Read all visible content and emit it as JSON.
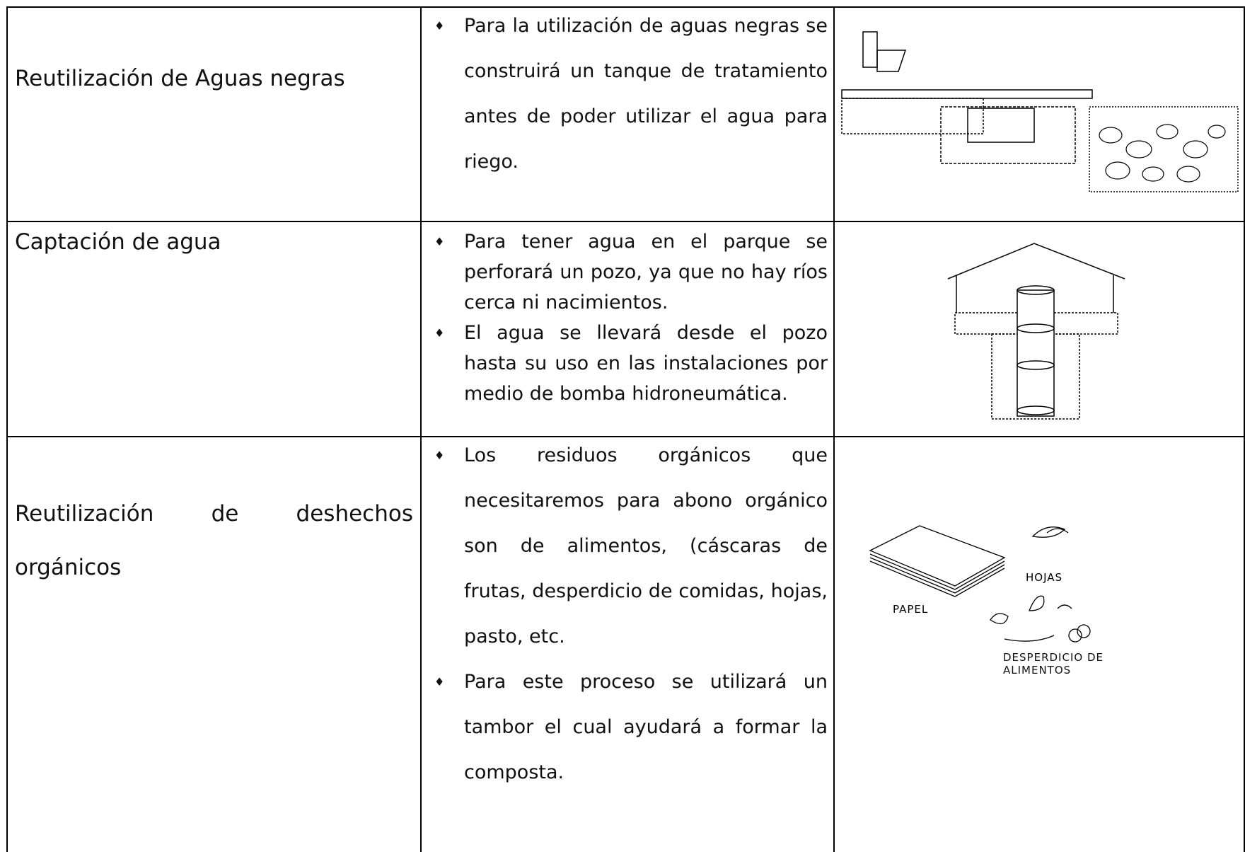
{
  "rows": [
    {
      "label": "Reutilización de Aguas negras",
      "bullets": [
        "Para la utilización de aguas negras se construirá un tanque de tratamiento antes de poder utilizar el agua para riego."
      ]
    },
    {
      "label": "Captación de agua",
      "bullets": [
        "Para tener agua en el parque se perforará un pozo, ya que no hay ríos cerca ni nacimientos.",
        "El agua se llevará desde el pozo hasta su uso en las instalaciones por medio de bomba hidroneumática."
      ]
    },
    {
      "label": "Reutilización de deshechos orgánicos",
      "bullets": [
        "Los residuos orgánicos que necesitaremos para abono orgánico son de alimentos, (cáscaras de frutas, desperdicio de comidas, hojas, pasto, etc.",
        "Para este proceso se utilizará un tambor el cual ayudará a formar la composta."
      ],
      "illustration_labels": [
        "PAPEL",
        "HOJAS",
        "DESPERDICIO DE ALIMENTOS"
      ]
    }
  ]
}
